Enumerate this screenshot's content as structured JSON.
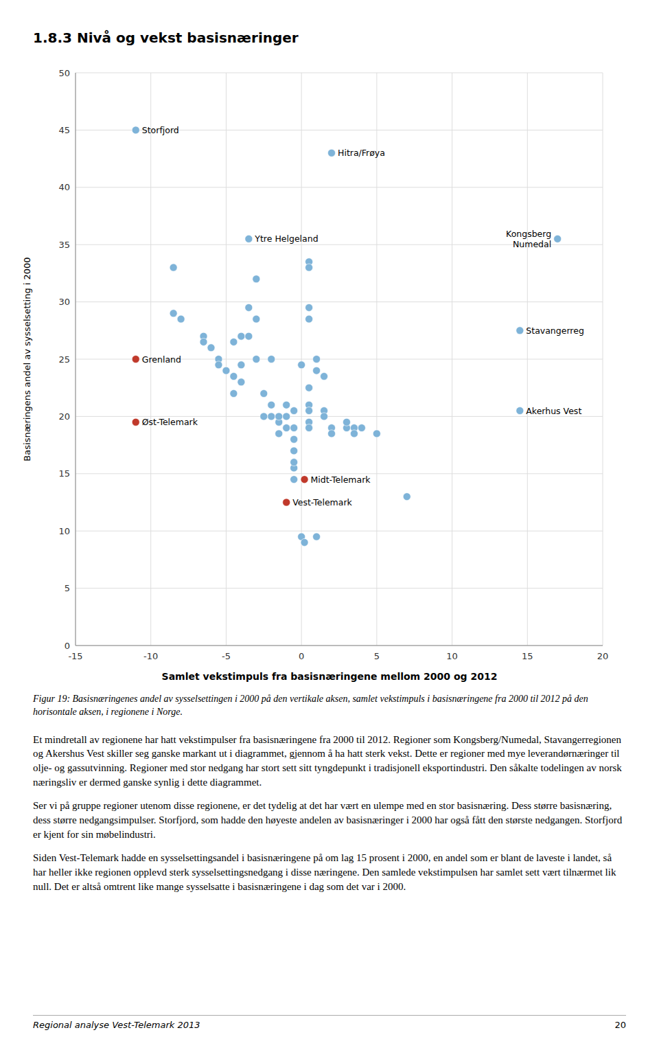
{
  "chart_data": {
    "type": "scatter",
    "title": "1.8.3 Nivå og vekst basisnæringer",
    "x_label": "Samlet vekstimpuls fra basisnæringene mellom 2000 og 2012",
    "y_label": "Basisnæringens andel av sysselsetting i 2000",
    "xlim": [
      -15,
      20
    ],
    "ylim": [
      0,
      50
    ],
    "xticks": [
      -15,
      -10,
      -5,
      0,
      5,
      10,
      15,
      20
    ],
    "yticks": [
      0,
      5,
      10,
      15,
      20,
      25,
      30,
      35,
      40,
      45,
      50
    ],
    "grid": true,
    "series": [
      {
        "color": "#7eb3d8",
        "marker": "circle",
        "x": [
          -8.5,
          -8.5,
          -8.0,
          -6.5,
          -6.5,
          -6.0,
          -5.5,
          -5.5,
          -5.0,
          -4.5,
          -4.0,
          -4.0,
          -4.0,
          -4.5,
          -4.5,
          -3.5,
          -3.0,
          -3.5,
          -3.0,
          -3.0,
          -2.5,
          -2.0,
          -2.0,
          -2.0,
          -2.5,
          -1.5,
          -1.5,
          -1.5,
          -1.0,
          -1.0,
          -1.0,
          -0.5,
          -0.5,
          -0.5,
          -0.5,
          -0.5,
          -0.5,
          -0.5,
          0.0,
          0.5,
          0.5,
          0.5,
          0.5,
          0.5,
          0.5,
          0.5,
          0.5,
          0.5,
          1.0,
          1.0,
          1.5,
          1.5,
          1.5,
          2.0,
          2.0,
          3.0,
          3.0,
          3.5,
          3.5,
          4.0,
          5.0,
          7.0,
          0.0,
          0.2,
          1.0
        ],
        "values": [
          33.0,
          29.0,
          28.5,
          27.0,
          26.5,
          26.0,
          25.0,
          24.5,
          24.0,
          23.5,
          24.5,
          23.0,
          27.0,
          22.0,
          26.5,
          27.0,
          28.5,
          29.5,
          25.0,
          32.0,
          22.0,
          25.0,
          21.0,
          20.0,
          20.0,
          19.5,
          20.0,
          18.5,
          19.0,
          20.0,
          21.0,
          20.5,
          19.0,
          18.0,
          17.0,
          15.5,
          14.5,
          16.0,
          24.5,
          33.5,
          33.0,
          29.5,
          28.5,
          22.5,
          21.0,
          20.5,
          19.5,
          19.0,
          25.0,
          24.0,
          23.5,
          20.5,
          20.0,
          19.0,
          18.5,
          19.0,
          19.5,
          19.0,
          18.5,
          19.0,
          18.5,
          13.0,
          9.5,
          9.0,
          9.5
        ]
      },
      {
        "marker": "circle",
        "x": [
          -11.0,
          2.0,
          -3.5,
          17.0,
          14.5,
          -11.0,
          -11.0,
          14.5,
          0.2,
          -1.0
        ],
        "values": [
          45.0,
          43.0,
          35.5,
          35.5,
          27.5,
          25.0,
          19.5,
          20.5,
          14.5,
          12.5
        ],
        "colors": [
          "#7eb3d8",
          "#7eb3d8",
          "#7eb3d8",
          "#7eb3d8",
          "#7eb3d8",
          "#c0392b",
          "#c0392b",
          "#7eb3d8",
          "#c0392b",
          "#c0392b"
        ],
        "labels": [
          "Storfjord",
          "Hitra/Frøya",
          "Ytre Helgeland",
          "Kongsberg\nNumedal",
          "Stavangerreg",
          "Grenland",
          "Øst-Telemark",
          "Akerhus Vest",
          "Midt-Telemark",
          "Vest-Telemark"
        ]
      }
    ]
  },
  "page_text": {
    "caption": "Figur 19: Basisnæringenes andel av sysselsettingen i 2000 på den vertikale aksen, samlet vekstimpuls i basisnæringene fra 2000 til 2012 på den horisontale aksen, i regionene i Norge.",
    "paragraphs": [
      "Et mindretall av regionene har hatt vekstimpulser fra basisnæringene fra 2000 til 2012. Regioner som Kongsberg/Numedal, Stavangerregionen og Akershus Vest skiller seg ganske markant ut i diagrammet, gjennom å ha hatt sterk vekst. Dette er regioner med mye leverandørnæringer til olje- og gassutvinning. Regioner med stor nedgang har stort sett sitt tyngdepunkt i tradisjonell eksportindustri. Den såkalte todelingen av norsk næringsliv er dermed ganske synlig i dette diagrammet.",
      "Ser vi på gruppe regioner utenom disse regionene, er det tydelig at det har vært en ulempe med en stor basisnæring. Dess større basisnæring, dess større nedgangsimpulser. Storfjord, som hadde den høyeste andelen av basisnæringer i 2000 har også fått den største nedgangen. Storfjord er kjent for sin møbelindustri.",
      "Siden Vest-Telemark hadde en sysselsettingsandel i basisnæringene på om lag 15 prosent i 2000, en andel som er blant de laveste i landet, så har heller ikke regionen opplevd sterk sysselsettingsnedgang i disse næringene. Den samlede vekstimpulsen har samlet sett vært tilnærmet lik null. Det er altså omtrent like mange sysselsatte i basisnæringene i dag som det var i 2000."
    ],
    "footer_left": "Regional analyse Vest-Telemark 2013",
    "footer_right": "20"
  }
}
